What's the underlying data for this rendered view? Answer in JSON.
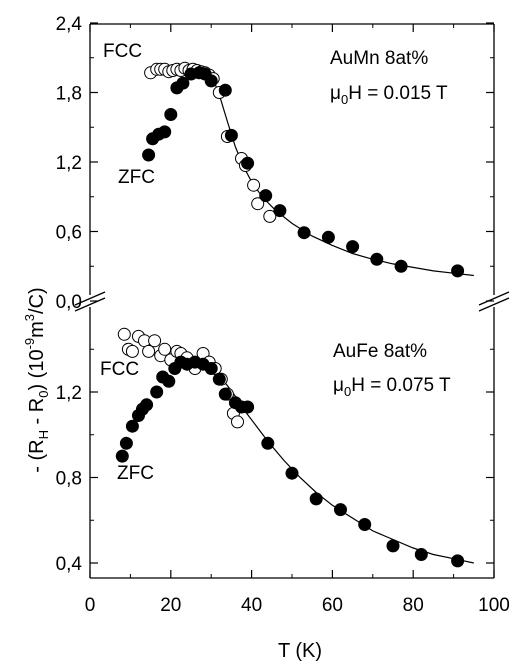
{
  "chart_data": {
    "type": "scatter",
    "xlabel": "T (K)",
    "ylabel": "- (R_H - R_0) (10^-9 m^3/C)",
    "xlim": [
      0,
      100
    ],
    "x_ticks": [
      "0",
      "20",
      "40",
      "60",
      "80",
      "100"
    ],
    "x_tick_values": [
      0,
      20,
      40,
      60,
      80,
      100
    ],
    "panels": [
      {
        "position": "top",
        "title": "AuMn 8at%",
        "field_prefix": "μ",
        "field_sub": "0",
        "field_suffix": "H = 0.015 T",
        "ylim": [
          0,
          2.4
        ],
        "y_ticks": [
          "0,0",
          "0,6",
          "1,2",
          "1,8",
          "2,4"
        ],
        "y_tick_values": [
          0,
          0.6,
          1.2,
          1.8,
          2.4
        ],
        "fcc_label": "FCC",
        "zfc_label": "ZFC",
        "series": [
          {
            "name": "FCC",
            "marker": "open-circle",
            "x": [
              15,
              16.5,
              17.5,
              18.5,
              19.5,
              20.5,
              21.5,
              22.5,
              23.5,
              24.5,
              25.5,
              26.5,
              27.5,
              28.5,
              29.5,
              30.5,
              32,
              34,
              37.5,
              38.5,
              40.5,
              41.5,
              44.5
            ],
            "y": [
              1.97,
              2.0,
              2.0,
              2.0,
              1.98,
              1.99,
              2.0,
              1.99,
              2.01,
              1.99,
              2.0,
              1.99,
              1.98,
              1.97,
              1.95,
              1.92,
              1.8,
              1.42,
              1.23,
              1.17,
              1.0,
              0.84,
              0.73
            ]
          },
          {
            "name": "ZFC",
            "marker": "filled-circle",
            "x": [
              14.5,
              15.5,
              17,
              18.5,
              20,
              21.5,
              23,
              25,
              27,
              28.5,
              30,
              33.5,
              35,
              39,
              43.5,
              47,
              53,
              59,
              65,
              71,
              77,
              91
            ],
            "y": [
              1.26,
              1.4,
              1.44,
              1.46,
              1.61,
              1.84,
              1.88,
              1.96,
              1.97,
              1.96,
              1.9,
              1.82,
              1.43,
              1.19,
              0.91,
              0.78,
              0.59,
              0.55,
              0.47,
              0.36,
              0.3,
              0.26
            ]
          }
        ],
        "fit": {
          "x": [
            30,
            32,
            34,
            36,
            38,
            40,
            42,
            44,
            46,
            50,
            55,
            60,
            65,
            70,
            75,
            80,
            85,
            90,
            95
          ],
          "y": [
            1.96,
            1.78,
            1.55,
            1.33,
            1.16,
            1.03,
            0.93,
            0.85,
            0.78,
            0.67,
            0.56,
            0.48,
            0.41,
            0.36,
            0.32,
            0.29,
            0.26,
            0.24,
            0.22
          ]
        }
      },
      {
        "position": "bottom",
        "title": "AuFe 8at%",
        "field_prefix": "μ",
        "field_sub": "0",
        "field_suffix": "H = 0.075 T",
        "ylim": [
          0.3,
          1.5
        ],
        "y_ticks": [
          "0,4",
          "0,8",
          "1,2"
        ],
        "y_tick_values": [
          0.4,
          0.8,
          1.2
        ],
        "fcc_label": "FCC",
        "zfc_label": "ZFC",
        "series": [
          {
            "name": "FCC",
            "marker": "open-circle",
            "x": [
              8.5,
              9.5,
              10.5,
              12,
              13.5,
              14.5,
              16,
              17.5,
              18.5,
              20,
              21.5,
              22.5,
              24,
              26,
              28,
              29.5,
              31,
              32.5,
              34,
              35.5,
              36.5
            ],
            "y": [
              1.47,
              1.4,
              1.39,
              1.46,
              1.44,
              1.39,
              1.44,
              1.37,
              1.4,
              1.35,
              1.39,
              1.38,
              1.36,
              1.31,
              1.38,
              1.34,
              1.31,
              1.26,
              1.19,
              1.1,
              1.06
            ]
          },
          {
            "name": "ZFC",
            "marker": "filled-circle",
            "x": [
              8,
              9,
              10.5,
              12,
              13,
              14,
              16.5,
              18,
              19.5,
              21,
              22.5,
              24,
              26,
              28,
              30,
              32,
              33.5,
              36,
              37.5,
              39,
              44,
              50,
              56,
              62,
              68,
              75,
              82,
              91
            ],
            "y": [
              0.9,
              0.96,
              1.04,
              1.09,
              1.12,
              1.14,
              1.2,
              1.27,
              1.25,
              1.31,
              1.34,
              1.33,
              1.34,
              1.33,
              1.31,
              1.26,
              1.19,
              1.15,
              1.13,
              1.13,
              0.96,
              0.82,
              0.7,
              0.65,
              0.58,
              0.48,
              0.44,
              0.41
            ]
          }
        ],
        "fit": {
          "x": [
            24,
            26,
            28,
            30,
            32,
            34,
            36,
            38,
            40,
            44,
            48,
            52,
            56,
            60,
            65,
            70,
            75,
            80,
            85,
            90,
            95
          ],
          "y": [
            1.355,
            1.345,
            1.33,
            1.31,
            1.275,
            1.23,
            1.18,
            1.12,
            1.07,
            0.97,
            0.88,
            0.8,
            0.73,
            0.67,
            0.61,
            0.55,
            0.51,
            0.47,
            0.44,
            0.42,
            0.4
          ]
        }
      }
    ]
  }
}
